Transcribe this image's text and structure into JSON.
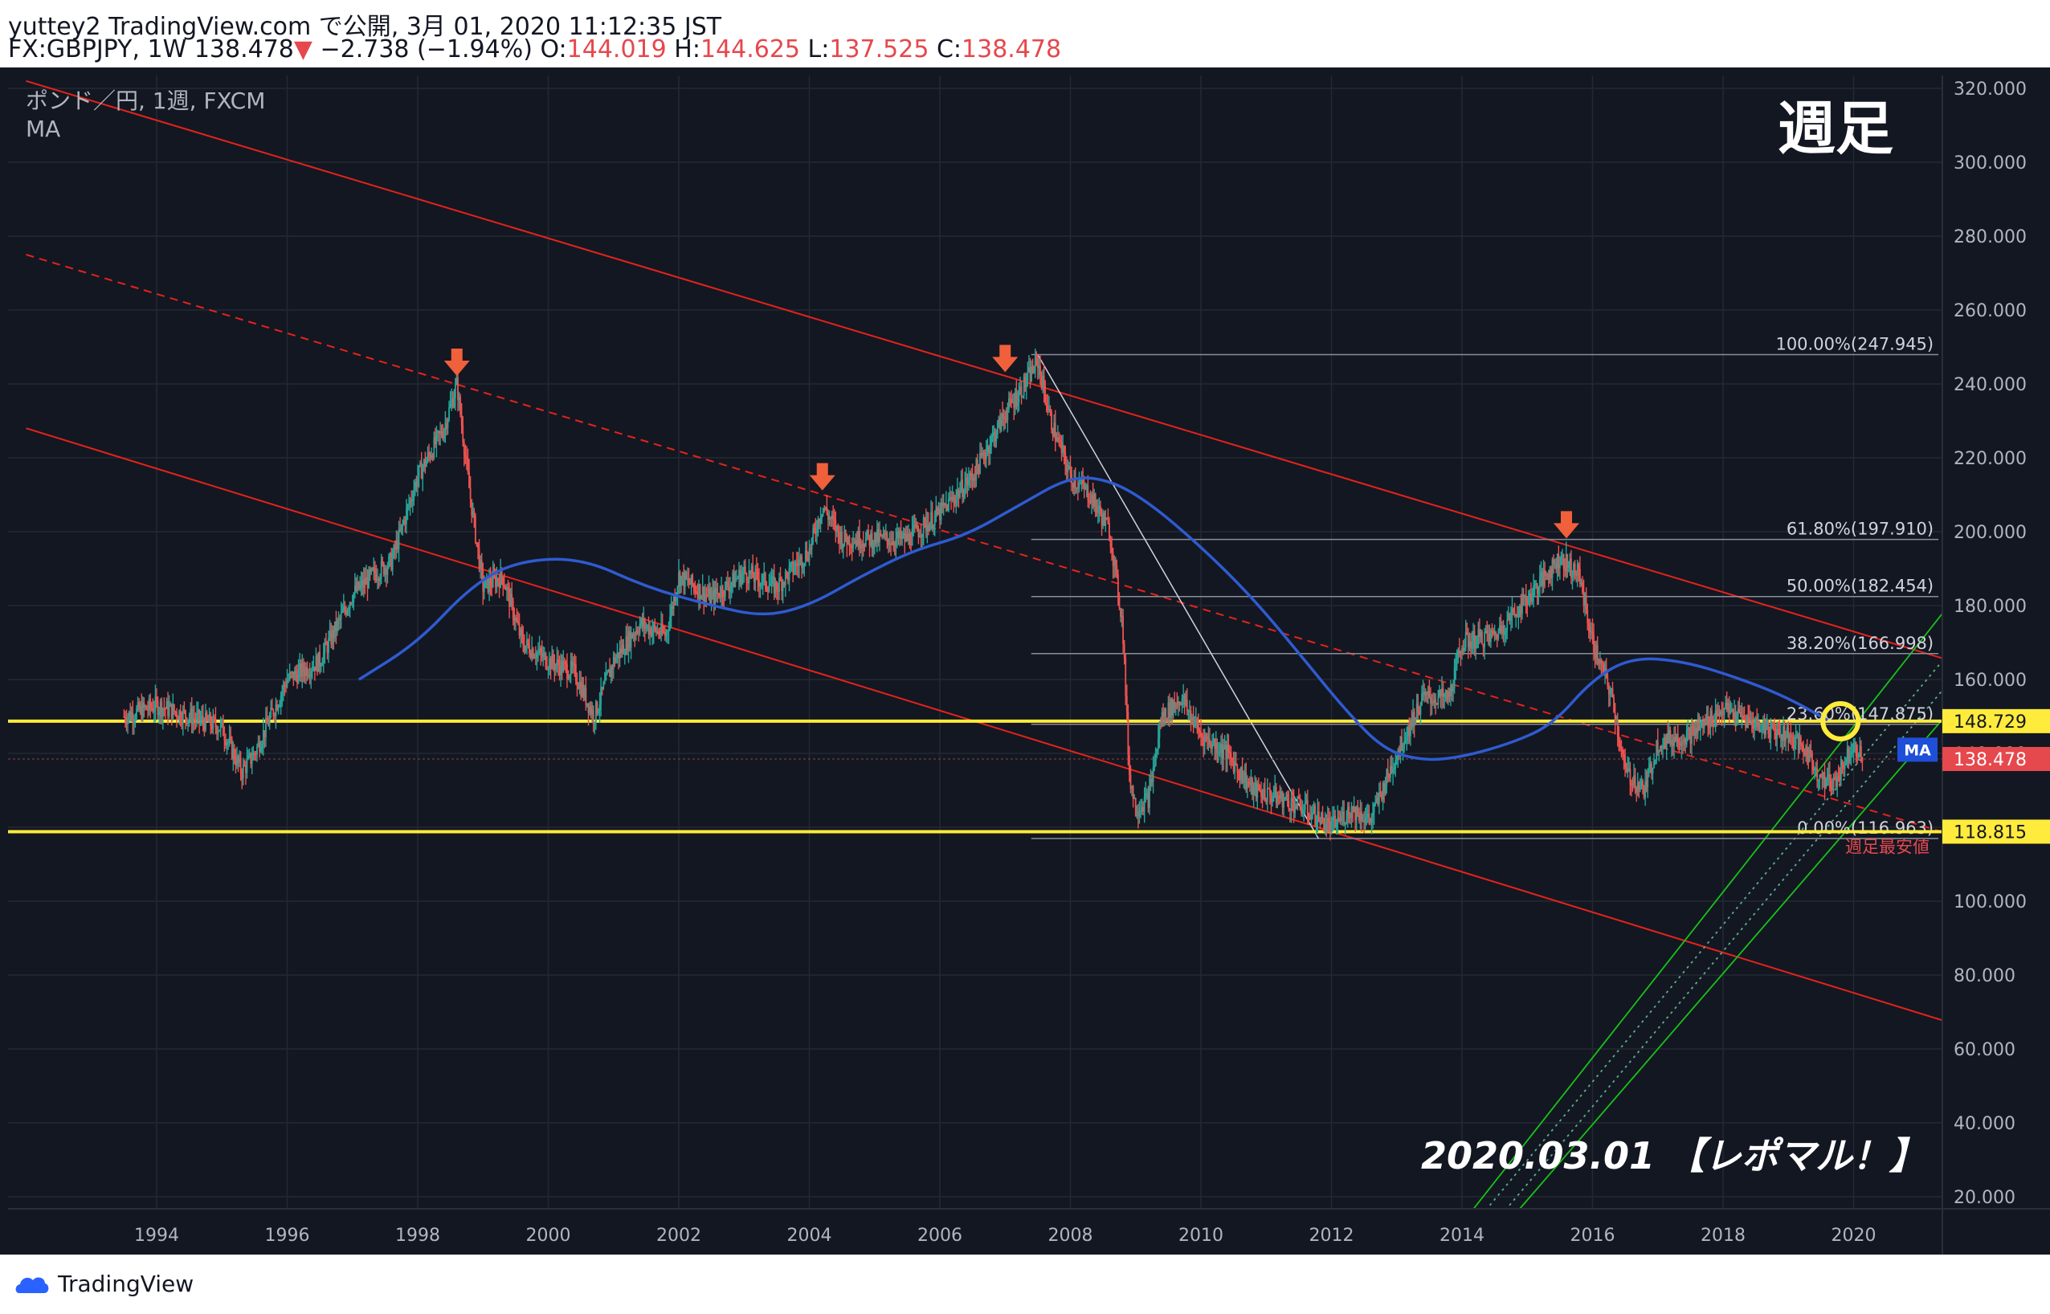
{
  "header": {
    "publish_line": "yuttey2 TradingView.com で公開, 3月 01, 2020 11:12:35 JST",
    "symbol": "FX:GBPJPY, 1W",
    "last": "138.478",
    "change_arrow": "▼",
    "change": "−2.738 (−1.94%)",
    "o_label": "O:",
    "o_value": "144.019",
    "h_label": "H:",
    "h_value": "144.625",
    "l_label": "L:",
    "l_value": "137.525",
    "c_label": "C:",
    "c_value": "138.478",
    "accent_red": "#e5484d"
  },
  "legend": {
    "line1": "ポンド／円, 1週, FXCM",
    "line2": "MA"
  },
  "annotations": {
    "timeframe": "週足",
    "date_note": "2020.03.01 【レポマル！】",
    "low_label": "週足最安値",
    "ma_badge": "MA"
  },
  "footer": {
    "brand": "TradingView",
    "icon": "tradingview-logo-icon"
  },
  "chart_data": {
    "type": "candlestick",
    "x_range": [
      1992.0,
      2021.5
    ],
    "ylim": [
      15,
      325
    ],
    "x_ticks": [
      "1994",
      "1996",
      "1998",
      "2000",
      "2002",
      "2004",
      "2006",
      "2008",
      "2010",
      "2012",
      "2014",
      "2016",
      "2018",
      "2020"
    ],
    "y_ticks": [
      "20.000",
      "40.000",
      "60.000",
      "80.000",
      "100.000",
      "120.000",
      "140.000",
      "160.000",
      "180.000",
      "200.000",
      "220.000",
      "240.000",
      "260.000",
      "280.000",
      "300.000",
      "320.000"
    ],
    "grid": true,
    "price_path": [
      [
        1993.5,
        150
      ],
      [
        1994.0,
        153
      ],
      [
        1994.5,
        150
      ],
      [
        1995.0,
        147
      ],
      [
        1995.3,
        135
      ],
      [
        1995.5,
        140
      ],
      [
        1996.0,
        160
      ],
      [
        1996.5,
        165
      ],
      [
        1997.0,
        183
      ],
      [
        1997.3,
        188
      ],
      [
        1997.6,
        192
      ],
      [
        1998.0,
        215
      ],
      [
        1998.4,
        228
      ],
      [
        1998.6,
        240
      ],
      [
        1998.8,
        210
      ],
      [
        1999.0,
        185
      ],
      [
        1999.3,
        188
      ],
      [
        1999.6,
        170
      ],
      [
        2000.0,
        165
      ],
      [
        2000.4,
        162
      ],
      [
        2000.7,
        150
      ],
      [
        2001.0,
        165
      ],
      [
        2001.4,
        175
      ],
      [
        2001.8,
        172
      ],
      [
        2002.0,
        188
      ],
      [
        2002.5,
        182
      ],
      [
        2003.0,
        189
      ],
      [
        2003.5,
        185
      ],
      [
        2004.0,
        195
      ],
      [
        2004.2,
        207
      ],
      [
        2004.5,
        198
      ],
      [
        2005.0,
        198
      ],
      [
        2005.5,
        198
      ],
      [
        2006.0,
        205
      ],
      [
        2006.5,
        215
      ],
      [
        2007.0,
        232
      ],
      [
        2007.3,
        240
      ],
      [
        2007.5,
        246
      ],
      [
        2007.7,
        230
      ],
      [
        2008.0,
        215
      ],
      [
        2008.3,
        210
      ],
      [
        2008.6,
        200
      ],
      [
        2008.8,
        175
      ],
      [
        2008.9,
        135
      ],
      [
        2009.0,
        125
      ],
      [
        2009.2,
        128
      ],
      [
        2009.4,
        150
      ],
      [
        2009.7,
        155
      ],
      [
        2010.0,
        145
      ],
      [
        2010.4,
        140
      ],
      [
        2010.8,
        130
      ],
      [
        2011.2,
        128
      ],
      [
        2011.6,
        125
      ],
      [
        2012.0,
        120
      ],
      [
        2012.3,
        125
      ],
      [
        2012.6,
        122
      ],
      [
        2013.0,
        140
      ],
      [
        2013.4,
        155
      ],
      [
        2013.8,
        155
      ],
      [
        2014.0,
        170
      ],
      [
        2014.5,
        172
      ],
      [
        2015.0,
        182
      ],
      [
        2015.5,
        193
      ],
      [
        2015.8,
        188
      ],
      [
        2016.0,
        170
      ],
      [
        2016.3,
        155
      ],
      [
        2016.5,
        135
      ],
      [
        2016.8,
        130
      ],
      [
        2017.0,
        143
      ],
      [
        2017.5,
        145
      ],
      [
        2018.0,
        152
      ],
      [
        2018.5,
        148
      ],
      [
        2019.0,
        145
      ],
      [
        2019.3,
        140
      ],
      [
        2019.5,
        133
      ],
      [
        2019.7,
        132
      ],
      [
        2020.0,
        143
      ],
      [
        2020.15,
        138.5
      ]
    ],
    "ma_series": {
      "name": "MA",
      "color": "#2f5bd0",
      "points": [
        [
          1997.1,
          160
        ],
        [
          1998.0,
          170
        ],
        [
          1998.8,
          185
        ],
        [
          1999.5,
          192
        ],
        [
          2000.5,
          193
        ],
        [
          2001.5,
          185
        ],
        [
          2002.5,
          180
        ],
        [
          2003.3,
          177
        ],
        [
          2004.0,
          180
        ],
        [
          2004.8,
          188
        ],
        [
          2005.6,
          195
        ],
        [
          2006.4,
          199
        ],
        [
          2007.2,
          207
        ],
        [
          2008.0,
          215
        ],
        [
          2008.6,
          214
        ],
        [
          2009.2,
          208
        ],
        [
          2010.0,
          196
        ],
        [
          2010.8,
          182
        ],
        [
          2011.6,
          165
        ],
        [
          2012.2,
          152
        ],
        [
          2012.8,
          141
        ],
        [
          2013.4,
          138
        ],
        [
          2014.0,
          139
        ],
        [
          2014.8,
          143
        ],
        [
          2015.4,
          148
        ],
        [
          2016.0,
          160
        ],
        [
          2016.6,
          166
        ],
        [
          2017.4,
          165
        ],
        [
          2018.3,
          160
        ],
        [
          2019.0,
          155
        ],
        [
          2019.6,
          149
        ]
      ]
    },
    "downtrend_channel": {
      "color": "#e5231b",
      "upper": [
        [
          1992.0,
          322
        ],
        [
          2021.5,
          165
        ]
      ],
      "middle": [
        [
          1992.0,
          275
        ],
        [
          2021.5,
          118
        ]
      ],
      "lower": [
        [
          1992.0,
          228
        ],
        [
          2021.5,
          67
        ]
      ]
    },
    "uptrend_channel": {
      "color": "#19c219",
      "lines": [
        [
          [
            2014.1,
            15
          ],
          [
            2021.5,
            181
          ]
        ],
        [
          [
            2014.3,
            15
          ],
          [
            2021.5,
            168
          ]
        ],
        [
          [
            2014.6,
            15
          ],
          [
            2021.5,
            160
          ]
        ],
        [
          [
            2014.8,
            15
          ],
          [
            2021.5,
            152
          ]
        ]
      ]
    },
    "horizontal_levels": [
      {
        "value": 148.729,
        "label": "148.729",
        "color": "#ffeb3b"
      },
      {
        "value": 118.815,
        "label": "118.815",
        "color": "#ffeb3b"
      }
    ],
    "current_price": {
      "value": 138.478,
      "label": "138.478",
      "color": "#e5484d"
    },
    "fibonacci": {
      "color": "#8a8e99",
      "start_x": 2007.4,
      "end_x": 2021.3,
      "levels": [
        {
          "label": "100.00%(247.945)",
          "value": 247.945
        },
        {
          "label": "61.80%(197.910)",
          "value": 197.91
        },
        {
          "label": "50.00%(182.454)",
          "value": 182.454
        },
        {
          "label": "38.20%(166.998)",
          "value": 166.998
        },
        {
          "label": "23.60%(147.875)",
          "value": 147.875
        },
        {
          "label": "0.00%(116.963)",
          "value": 116.963
        }
      ]
    },
    "fib_anchor_line": [
      [
        2007.5,
        247.9
      ],
      [
        2011.8,
        117
      ]
    ],
    "peak_markers": [
      [
        1998.6,
        240
      ],
      [
        2007.0,
        241
      ],
      [
        2004.2,
        209
      ],
      [
        2015.6,
        196
      ]
    ],
    "highlight_circle": {
      "x": 2019.8,
      "y": 148.7,
      "color": "#ffeb3b"
    }
  }
}
